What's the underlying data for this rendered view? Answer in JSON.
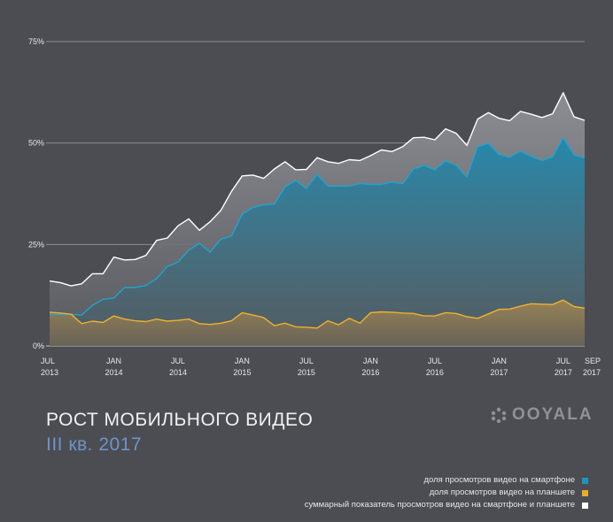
{
  "chart_data": {
    "type": "area",
    "title": "РОСТ МОБИЛЬНОГО ВИДЕО",
    "subtitle": "III кв. 2017",
    "ylim": [
      0,
      75
    ],
    "yticks": [
      {
        "value": 0,
        "label": "0%"
      },
      {
        "value": 25,
        "label": "25%"
      },
      {
        "value": 50,
        "label": "50%"
      },
      {
        "value": 75,
        "label": "75%"
      }
    ],
    "xticks": [
      {
        "index": 0,
        "month": "JUL",
        "year": "2013"
      },
      {
        "index": 6,
        "month": "JAN",
        "year": "2014"
      },
      {
        "index": 12,
        "month": "JUL",
        "year": "2014"
      },
      {
        "index": 18,
        "month": "JAN",
        "year": "2015"
      },
      {
        "index": 24,
        "month": "JUL",
        "year": "2015"
      },
      {
        "index": 30,
        "month": "JAN",
        "year": "2016"
      },
      {
        "index": 36,
        "month": "JUL",
        "year": "2016"
      },
      {
        "index": 42,
        "month": "JAN",
        "year": "2017"
      },
      {
        "index": 48,
        "month": "JUL",
        "year": "2017"
      },
      {
        "index": 50,
        "month": "SEP",
        "year": "2017"
      }
    ],
    "series": [
      {
        "name": "суммарный показатель просмотров видео на смартфоне и планшете",
        "color": "#ffffff",
        "values": [
          16,
          15.6,
          14.8,
          15.3,
          17.8,
          17.8,
          21.9,
          21.2,
          21.3,
          22.3,
          26,
          26.6,
          29.6,
          31.3,
          28.5,
          30.6,
          33.4,
          38.1,
          41.9,
          42.1,
          41.3,
          43.6,
          45.4,
          43.4,
          43.5,
          46.4,
          45.4,
          45,
          45.9,
          45.7,
          46.9,
          48.3,
          47.9,
          49.1,
          51.3,
          51.4,
          50.8,
          53.5,
          52.4,
          49.4,
          55.9,
          57.5,
          56.1,
          55.5,
          57.8,
          57.1,
          56.3,
          57.2,
          62.4,
          56.5,
          55.6
        ]
      },
      {
        "name": "доля просмотров видео на смартфоне",
        "color": "#1e95bf",
        "values": [
          7.8,
          7.8,
          7.8,
          7.6,
          10,
          11.5,
          11.8,
          14.4,
          14.4,
          14.9,
          16.6,
          19.6,
          20.7,
          23.6,
          25.3,
          23.1,
          26.3,
          27.1,
          32.5,
          34.1,
          34.8,
          35,
          39.2,
          40.8,
          38.8,
          42.3,
          39.4,
          39.4,
          39.4,
          40,
          39.8,
          39.8,
          40.4,
          40,
          43.6,
          44.5,
          43.4,
          45.6,
          44.5,
          41.6,
          49.1,
          49.9,
          47.2,
          46.5,
          48,
          46.7,
          45.7,
          46.6,
          51.3,
          47.1,
          46.3
        ]
      },
      {
        "name": "доля просмотров видео на планшете",
        "color": "#e7ad2c",
        "values": [
          8.3,
          8.1,
          7.8,
          5.5,
          6.1,
          5.8,
          7.4,
          6.6,
          6.2,
          6,
          6.6,
          6.1,
          6.3,
          6.6,
          5.5,
          5.3,
          5.6,
          6.2,
          8.2,
          7.6,
          7,
          5,
          5.6,
          4.7,
          4.6,
          4.4,
          6.2,
          5.2,
          6.8,
          5.6,
          8.2,
          8.4,
          8.3,
          8.1,
          8,
          7.4,
          7.4,
          8.2,
          8,
          7.2,
          6.8,
          7.9,
          9,
          9.1,
          9.8,
          10.4,
          10.3,
          10.2,
          11.3,
          9.7,
          9.3
        ]
      }
    ]
  },
  "title": "РОСТ МОБИЛЬНОГО ВИДЕО",
  "subtitle": "III кв. 2017",
  "logo_text": "OOYALA",
  "legend": [
    {
      "label": "доля просмотров видео на смартфоне",
      "color": "#1e95bf"
    },
    {
      "label": "доля просмотров видео на планшете",
      "color": "#e7ad2c"
    },
    {
      "label": "суммарный показатель просмотров видео на смартфоне и планшете",
      "color": "#ffffff"
    }
  ]
}
